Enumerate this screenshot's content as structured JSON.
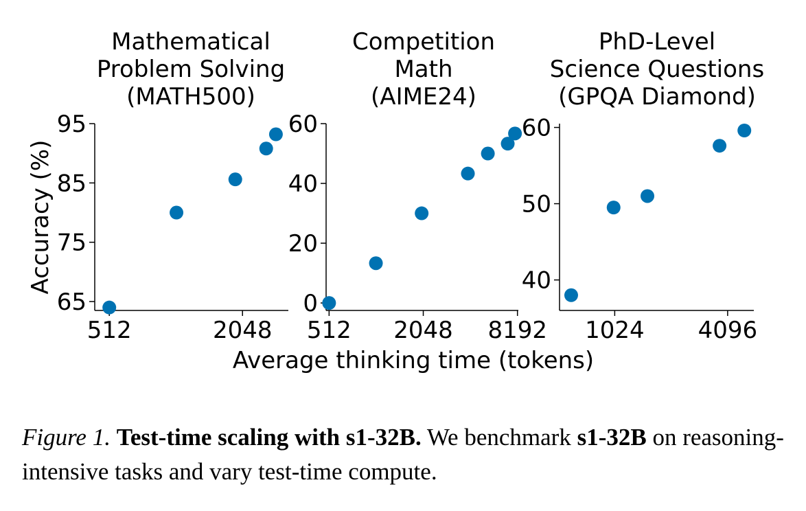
{
  "chart_data": [
    {
      "type": "scatter",
      "title": [
        "Mathematical",
        "Problem Solving",
        "(MATH500)"
      ],
      "ylabel": "Accuracy (%)",
      "xscale": "log2",
      "xticks": [
        512,
        2048
      ],
      "xtick_labels": [
        "512",
        "2048"
      ],
      "yticks": [
        65,
        75,
        85,
        95
      ],
      "xlim": [
        440,
        3300
      ],
      "ylim": [
        63.5,
        95
      ],
      "points": [
        {
          "x": 512,
          "y": 64.0
        },
        {
          "x": 1030,
          "y": 80.0
        },
        {
          "x": 1900,
          "y": 85.6
        },
        {
          "x": 2620,
          "y": 90.8
        },
        {
          "x": 2900,
          "y": 93.2
        }
      ]
    },
    {
      "type": "scatter",
      "title": [
        "Competition",
        "Math",
        "(AIME24)"
      ],
      "xscale": "log2",
      "xticks": [
        512,
        2048,
        8192
      ],
      "xtick_labels": [
        "512",
        "2048",
        "8192"
      ],
      "yticks": [
        0,
        20,
        40,
        60
      ],
      "xlim": [
        490,
        8300
      ],
      "ylim": [
        -2.5,
        60
      ],
      "points": [
        {
          "x": 512,
          "y": 0.0
        },
        {
          "x": 1020,
          "y": 13.3
        },
        {
          "x": 2000,
          "y": 30.0
        },
        {
          "x": 3950,
          "y": 43.3
        },
        {
          "x": 5300,
          "y": 50.0
        },
        {
          "x": 7100,
          "y": 53.3
        },
        {
          "x": 7900,
          "y": 56.7
        }
      ]
    },
    {
      "type": "scatter",
      "title": [
        "PhD-Level",
        "Science Questions",
        "(GPQA Diamond)"
      ],
      "xscale": "log2",
      "xticks": [
        1024,
        4096
      ],
      "xtick_labels": [
        "1024",
        "4096"
      ],
      "yticks": [
        40,
        50,
        60
      ],
      "xlim": [
        520,
        5650
      ],
      "ylim": [
        36,
        60.5
      ],
      "points": [
        {
          "x": 600,
          "y": 38.0
        },
        {
          "x": 1010,
          "y": 49.5
        },
        {
          "x": 1530,
          "y": 51.0
        },
        {
          "x": 3710,
          "y": 57.6
        },
        {
          "x": 5030,
          "y": 59.6
        }
      ]
    }
  ],
  "shared_xlabel": "Average thinking time (tokens)",
  "marker_color": "#0072b2",
  "caption": {
    "label": "Figure 1.",
    "bold_lead": "Test-time scaling with s1-32B.",
    "text1": "We benchmark",
    "bold_model": "s1-32B",
    "text2": "on reasoning-intensive tasks and vary test-time compute."
  }
}
